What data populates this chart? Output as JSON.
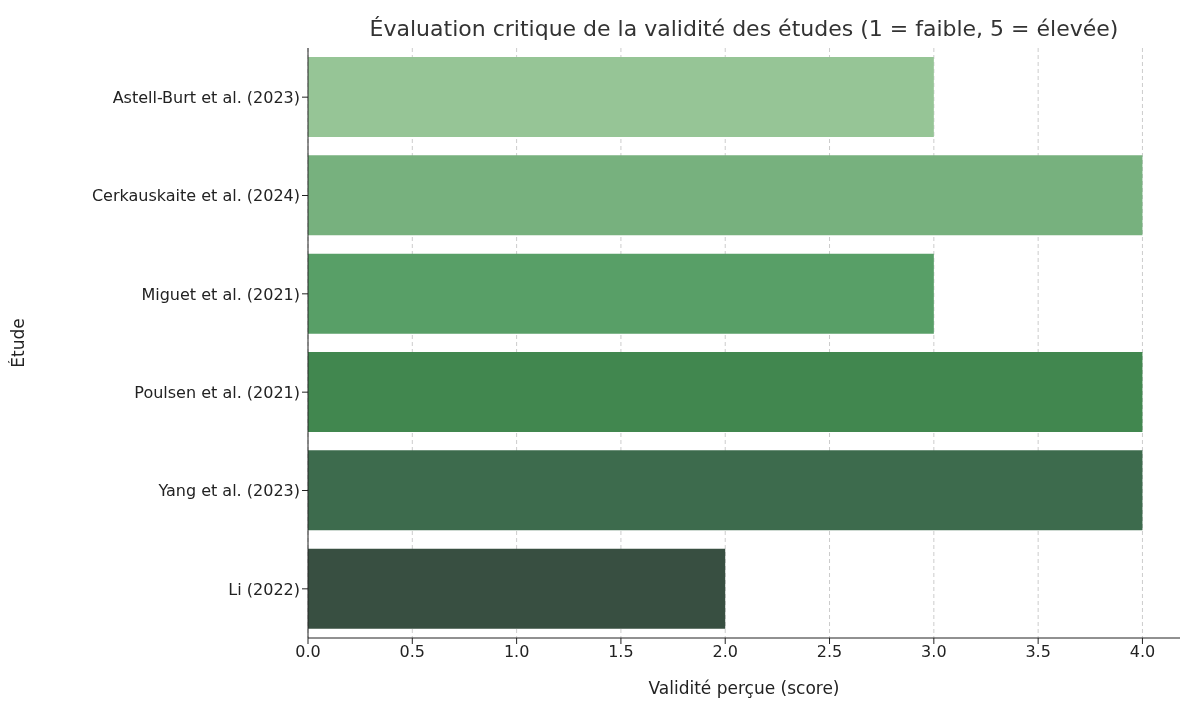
{
  "chart_data": {
    "type": "bar",
    "orientation": "horizontal",
    "title": "Évaluation critique de la validité des études (1 = faible, 5 = élevée)",
    "xlabel": "Validité perçue (score)",
    "ylabel": "Étude",
    "categories": [
      "Astell-Burt et al. (2023)",
      "Cerkauskaite et al. (2024)",
      "Miguet et al. (2021)",
      "Poulsen et al. (2021)",
      "Yang et al. (2023)",
      "Li (2022)"
    ],
    "values": [
      3,
      4,
      3,
      4,
      4,
      2
    ],
    "colors": [
      "#96c596",
      "#77b17e",
      "#589f67",
      "#41874f",
      "#3d6b4d",
      "#384f41"
    ],
    "xlim": [
      0,
      4.18
    ],
    "xticks": [
      {
        "value": 0,
        "label": "0.0"
      },
      {
        "value": 0.5,
        "label": "0.5"
      },
      {
        "value": 1,
        "label": "1.0"
      },
      {
        "value": 1.5,
        "label": "1.5"
      },
      {
        "value": 2,
        "label": "2.0"
      },
      {
        "value": 2.5,
        "label": "2.5"
      },
      {
        "value": 3,
        "label": "3.0"
      },
      {
        "value": 3.5,
        "label": "3.5"
      },
      {
        "value": 4,
        "label": "4.0"
      }
    ],
    "grid": "x"
  }
}
